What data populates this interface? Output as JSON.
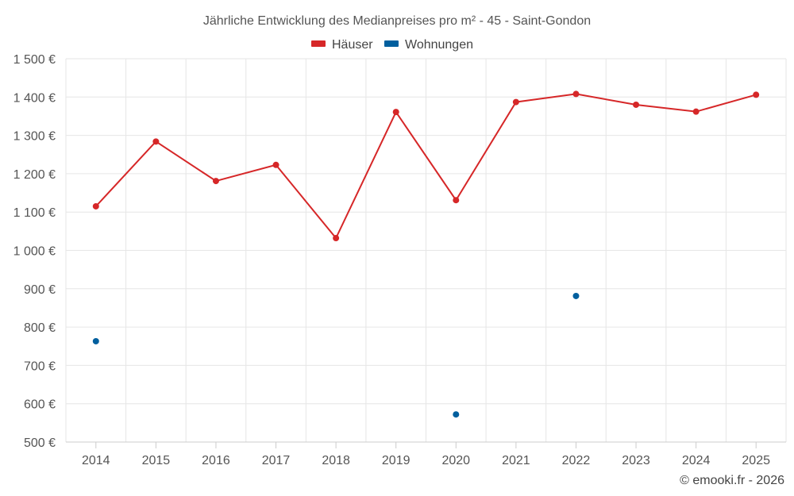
{
  "chart_data": {
    "type": "line",
    "title": "Jährliche Entwicklung des Medianpreises pro m² - 45 - Saint-Gondon",
    "categories": [
      "2014",
      "2015",
      "2016",
      "2017",
      "2018",
      "2019",
      "2020",
      "2021",
      "2022",
      "2023",
      "2024",
      "2025"
    ],
    "series": [
      {
        "name": "Häuser",
        "color": "#d62728",
        "values": [
          1115,
          1284,
          1181,
          1223,
          1032,
          1361,
          1131,
          1387,
          1408,
          1380,
          1362,
          1406
        ]
      },
      {
        "name": "Wohnungen",
        "color": "#005f9e",
        "values": [
          763,
          null,
          null,
          null,
          null,
          null,
          572,
          null,
          881,
          null,
          null,
          null
        ]
      }
    ],
    "yticks": [
      "1 500 €",
      "1 400 €",
      "1 300 €",
      "1 200 €",
      "1 100 €",
      "1 000 €",
      "900 €",
      "800 €",
      "700 €",
      "600 €",
      "500 €"
    ],
    "ylim": [
      500,
      1500
    ],
    "xlabel": "",
    "ylabel": "",
    "grid": true,
    "legend": "top-center"
  },
  "credit": "© emooki.fr - 2026"
}
